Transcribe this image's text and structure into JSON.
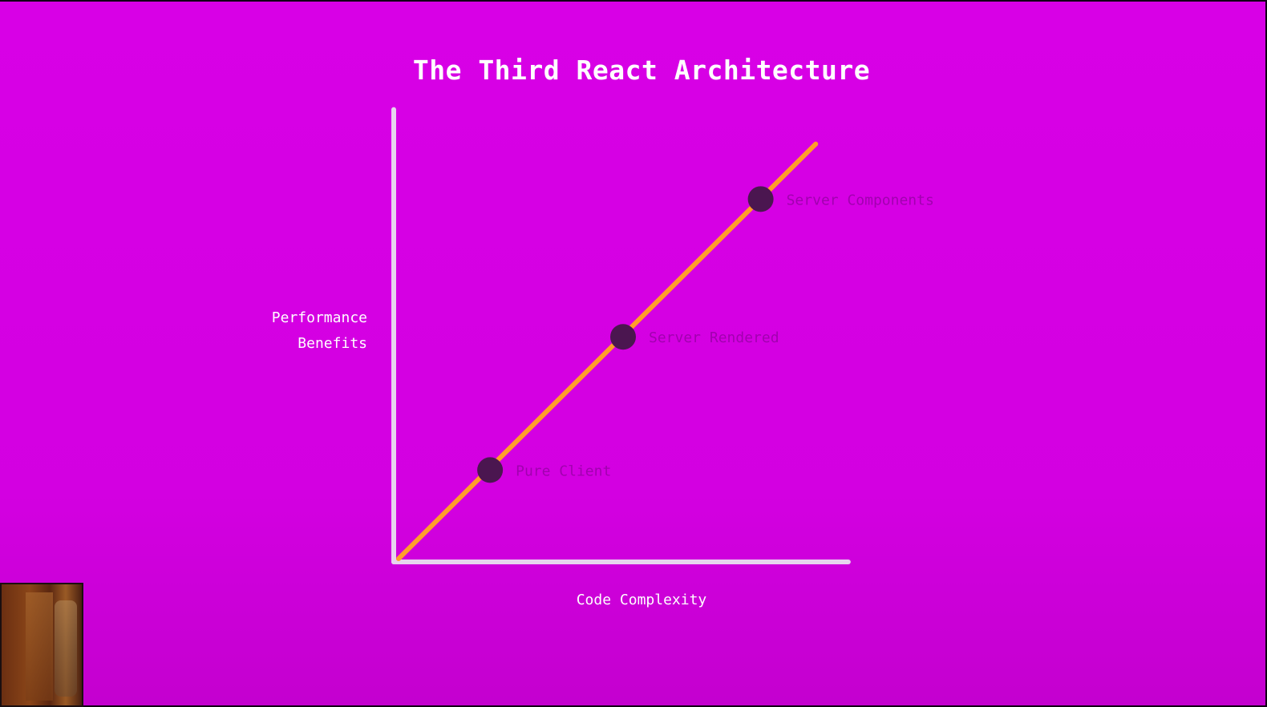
{
  "chart_data": {
    "type": "line",
    "title": "The Third React Architecture",
    "ylabel_lines": [
      "Performance",
      "Benefits"
    ],
    "xlabel": "Code Complexity",
    "x_ticks": [],
    "y_ticks": [],
    "grid": false,
    "line_color": "#ff9f2a",
    "axis_color": "#e7d4ee",
    "point_color": "#4b1650",
    "label_color": "#a200b0",
    "points": [
      {
        "label": "Pure Client",
        "x": 0.21,
        "y": 0.2
      },
      {
        "label": "Server Rendered",
        "x": 0.5,
        "y": 0.49
      },
      {
        "label": "Server Components",
        "x": 0.8,
        "y": 0.79
      }
    ],
    "trend_line": {
      "x": [
        0,
        0.92
      ],
      "y": [
        0,
        0.91
      ]
    }
  }
}
